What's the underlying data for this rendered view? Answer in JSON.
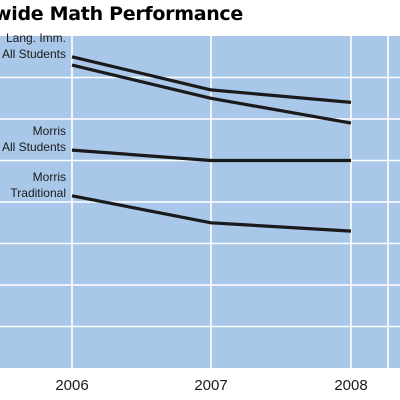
{
  "chart_data": {
    "type": "line",
    "title": "wide Math Performance",
    "xlabel": "",
    "ylabel": "",
    "categories": [
      "2006",
      "2007",
      "2008"
    ],
    "ylim": [
      0,
      8
    ],
    "grid": true,
    "colors": {
      "plot_background": "#a9c7e9",
      "gridlines": "#ffffff",
      "series": "#1a1a1a"
    },
    "series": [
      {
        "name": "",
        "values": [
          7.5,
          6.7,
          6.4
        ]
      },
      {
        "name": "",
        "values": [
          7.3,
          6.5,
          5.9
        ]
      },
      {
        "name": "",
        "values": [
          5.25,
          5.0,
          5.0
        ]
      },
      {
        "name": "",
        "values": [
          4.15,
          3.5,
          3.3
        ]
      }
    ],
    "labels": [
      {
        "lines": [
          "Lang. Imm.",
          "All Students"
        ],
        "series_index": 0
      },
      {
        "lines": [
          "Morris",
          "All Students"
        ],
        "series_index": 2
      },
      {
        "lines": [
          "Morris",
          "Traditional"
        ],
        "series_index": 3
      }
    ]
  }
}
